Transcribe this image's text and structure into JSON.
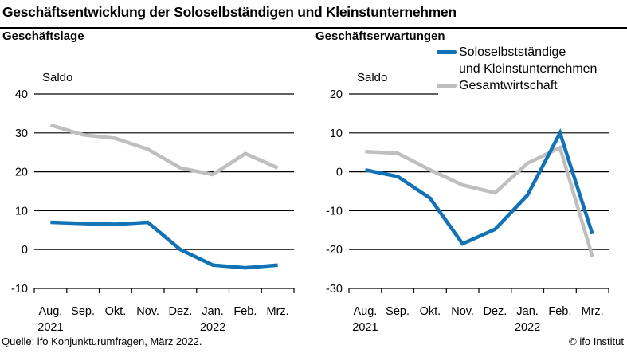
{
  "title": "Geschäftsentwicklung der Soloselbständigen und Kleinstunternehmen",
  "footer": {
    "source": "Quelle: ifo Konjunkturumfragen, März 2022.",
    "copyright": "© ifo Institut"
  },
  "colors": {
    "solo": "#1272b6",
    "gesamt": "#bfbfbf",
    "axis": "#000000"
  },
  "legend": {
    "items": [
      {
        "id": "solo",
        "line1": "Soloselbstständige",
        "line2": "und Kleinstunternehmen",
        "color": "#1272b6"
      },
      {
        "id": "gesamt",
        "line1": "Gesamtwirtschaft",
        "line2": "",
        "color": "#bfbfbf"
      }
    ]
  },
  "chart_data": [
    {
      "type": "line",
      "title": "Geschäftslage",
      "ylabel": "Saldo",
      "ylim": [
        -10,
        40
      ],
      "yticks": [
        40,
        30,
        20,
        10,
        0,
        -10
      ],
      "grid": true,
      "categories": [
        "Aug.",
        "Sep.",
        "Okt.",
        "Nov.",
        "Dez.",
        "Jan.",
        "Feb.",
        "Mrz."
      ],
      "years": [
        {
          "index": 0,
          "label": "2021"
        },
        {
          "index": 5,
          "label": "2022"
        }
      ],
      "series": [
        {
          "id": "solo",
          "name": "Soloselbstständige und Kleinstunternehmen",
          "color": "#1272b6",
          "values": [
            7,
            6.7,
            6.5,
            7,
            0,
            -4,
            -4.7,
            -4
          ]
        },
        {
          "id": "gesamt",
          "name": "Gesamtwirtschaft",
          "color": "#bfbfbf",
          "values": [
            32,
            29.5,
            28.6,
            25.8,
            21,
            19.3,
            24.7,
            21
          ]
        }
      ]
    },
    {
      "type": "line",
      "title": "Geschäftserwartungen",
      "ylabel": "Saldo",
      "ylim": [
        -30,
        20
      ],
      "yticks": [
        20,
        10,
        0,
        -10,
        -20,
        -30
      ],
      "grid": true,
      "legend_position": "top-right",
      "categories": [
        "Aug.",
        "Sep.",
        "Okt.",
        "Nov.",
        "Dez.",
        "Jan.",
        "Feb.",
        "Mrz."
      ],
      "years": [
        {
          "index": 0,
          "label": "2021"
        },
        {
          "index": 5,
          "label": "2022"
        }
      ],
      "series": [
        {
          "id": "solo",
          "name": "Soloselbstständige und Kleinstunternehmen",
          "color": "#1272b6",
          "values": [
            0.5,
            -1.2,
            -6.8,
            -18.5,
            -14.8,
            -6,
            10,
            -16
          ]
        },
        {
          "id": "gesamt",
          "name": "Gesamtwirtschaft",
          "color": "#bfbfbf",
          "values": [
            5.2,
            4.8,
            0.5,
            -3.4,
            -5.4,
            2.2,
            6.2,
            -21.8
          ]
        }
      ]
    }
  ]
}
